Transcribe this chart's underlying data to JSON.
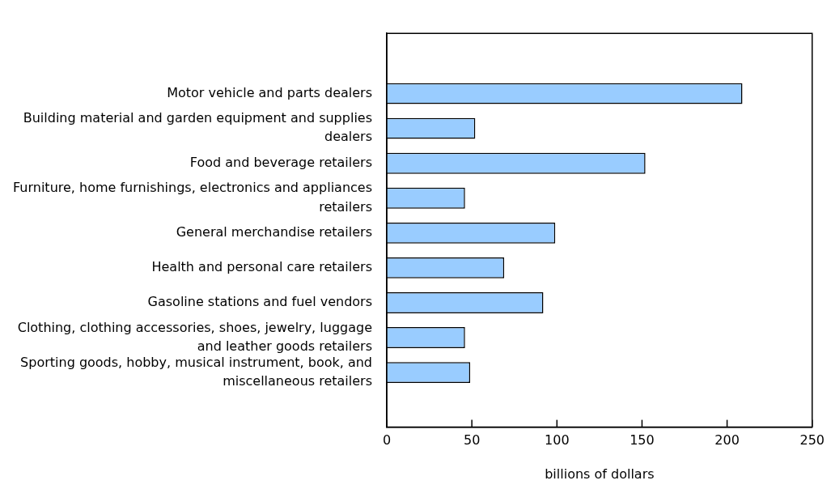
{
  "chart_data": {
    "type": "bar",
    "orientation": "horizontal",
    "categories": [
      "Motor vehicle and parts dealers",
      "Building material and garden equipment and supplies dealers",
      "Food and beverage retailers",
      "Furniture, home furnishings, electronics and appliances retailers",
      "General merchandise retailers",
      "Health and personal care retailers",
      "Gasoline stations and fuel vendors",
      "Clothing, clothing accessories, shoes, jewelry, luggage and leather goods retailers",
      "Sporting goods, hobby, musical instrument, book, and miscellaneous retailers"
    ],
    "values": [
      209,
      52,
      152,
      46,
      99,
      69,
      92,
      46,
      49
    ],
    "color": "#99ccff",
    "xlabel": "billions of dollars",
    "xlim": [
      0,
      250
    ],
    "xticks": [
      0,
      50,
      100,
      150,
      200,
      250
    ],
    "grid": false,
    "legend": false
  }
}
